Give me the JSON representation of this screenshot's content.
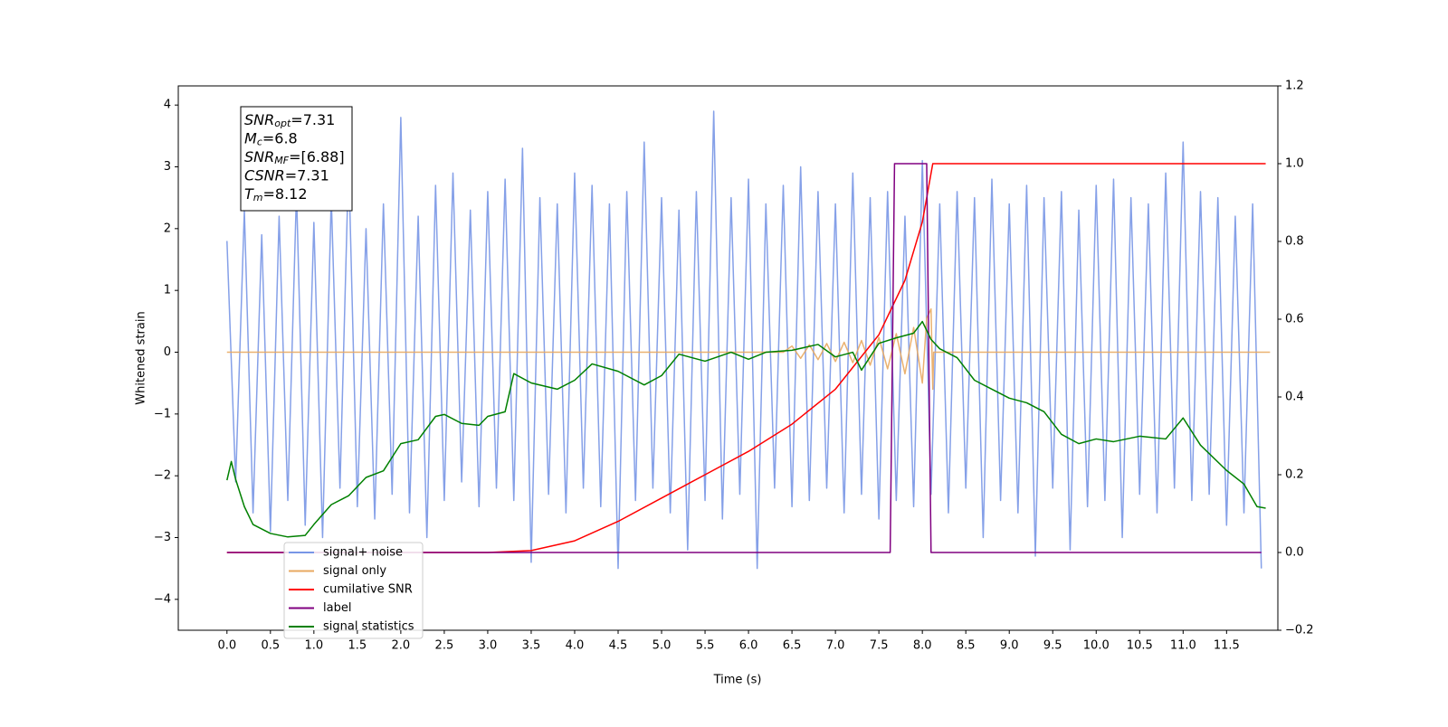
{
  "chart_data": {
    "type": "line",
    "xlabel": "Time (s)",
    "ylabel": "Whitened strain",
    "xlim": [
      -0.56,
      12.09
    ],
    "ylim": [
      -4.5,
      4.31
    ],
    "y2lim": [
      -0.2,
      1.2
    ],
    "xticks": [
      {
        "value": 0,
        "label": "0.0"
      },
      0.5,
      {
        "value": 1,
        "label": "1.0"
      },
      1.5,
      {
        "value": 2,
        "label": "2.0"
      },
      2.5,
      {
        "value": 3,
        "label": "3.0"
      },
      3.5,
      {
        "value": 4,
        "label": "4.0"
      },
      4.5,
      {
        "value": 5,
        "label": "5.0"
      },
      5.5,
      {
        "value": 6,
        "label": "6.0"
      },
      6.5,
      {
        "value": 7,
        "label": "7.0"
      },
      7.5,
      {
        "value": 8,
        "label": "8.0"
      },
      8.5,
      {
        "value": 9,
        "label": "9.0"
      },
      9.5,
      {
        "value": 10,
        "label": "10.0"
      },
      10.5,
      {
        "value": 11,
        "label": "11.0"
      },
      11.5
    ],
    "yticks": [
      {
        "value": -4,
        "label": "−4"
      },
      {
        "value": -3,
        "label": "−3"
      },
      {
        "value": -2,
        "label": "−2"
      },
      {
        "value": -1,
        "label": "−1"
      },
      0,
      1,
      2,
      3,
      4
    ],
    "y2ticks": [
      {
        "value": -0.2,
        "label": "−0.2"
      },
      {
        "value": 0,
        "label": "0.0"
      },
      0.2,
      0.4,
      0.6,
      0.8,
      {
        "value": 1,
        "label": "1.0"
      },
      1.2
    ],
    "annotation": [
      {
        "symbol": "SNR",
        "sub": "opt",
        "text": "=7.31"
      },
      {
        "symbol": "M",
        "sub": "c",
        "text": "=6.8"
      },
      {
        "symbol": "SNR",
        "sub": "MF",
        "text": "=[6.88]"
      },
      {
        "symbol": "CSNR",
        "text": "=7.31"
      },
      {
        "symbol": "T",
        "sub": "m",
        "text": "=8.12"
      }
    ],
    "series": [
      {
        "name": "signal+ noise",
        "color": "#7896e6",
        "axis": "y",
        "x": [
          0.0,
          0.1,
          0.2,
          0.3,
          0.4,
          0.5,
          0.6,
          0.7,
          0.8,
          0.9,
          1.0,
          1.1,
          1.2,
          1.3,
          1.4,
          1.5,
          1.6,
          1.7,
          1.8,
          1.9,
          2.0,
          2.1,
          2.2,
          2.3,
          2.4,
          2.5,
          2.6,
          2.7,
          2.8,
          2.9,
          3.0,
          3.1,
          3.2,
          3.3,
          3.4,
          3.5,
          3.6,
          3.7,
          3.8,
          3.9,
          4.0,
          4.1,
          4.2,
          4.3,
          4.4,
          4.5,
          4.6,
          4.7,
          4.8,
          4.9,
          5.0,
          5.1,
          5.2,
          5.3,
          5.4,
          5.5,
          5.6,
          5.7,
          5.8,
          5.9,
          6.0,
          6.1,
          6.2,
          6.3,
          6.4,
          6.5,
          6.6,
          6.7,
          6.8,
          6.9,
          7.0,
          7.1,
          7.2,
          7.3,
          7.4,
          7.5,
          7.6,
          7.7,
          7.8,
          7.9,
          8.0,
          8.1,
          8.2,
          8.3,
          8.4,
          8.5,
          8.6,
          8.7,
          8.8,
          8.9,
          9.0,
          9.1,
          9.2,
          9.3,
          9.4,
          9.5,
          9.6,
          9.7,
          9.8,
          9.9,
          10.0,
          10.1,
          10.2,
          10.3,
          10.4,
          10.5,
          10.6,
          10.7,
          10.8,
          10.9,
          11.0,
          11.1,
          11.2,
          11.3,
          11.4,
          11.5,
          11.6,
          11.7,
          11.8,
          11.9
        ],
        "values": [
          1.8,
          -2.1,
          2.3,
          -2.6,
          1.9,
          -2.9,
          2.2,
          -2.4,
          2.6,
          -2.8,
          2.1,
          -3.0,
          2.5,
          -2.2,
          3.1,
          -2.5,
          2.0,
          -2.7,
          2.4,
          -2.3,
          3.8,
          -2.6,
          2.2,
          -3.0,
          2.7,
          -2.4,
          2.9,
          -2.1,
          2.3,
          -2.5,
          2.6,
          -2.2,
          2.8,
          -2.4,
          3.3,
          -3.4,
          2.5,
          -2.3,
          2.4,
          -2.6,
          2.9,
          -2.2,
          2.7,
          -2.5,
          2.4,
          -3.5,
          2.6,
          -2.4,
          3.4,
          -2.2,
          2.5,
          -2.6,
          2.3,
          -3.2,
          2.6,
          -2.4,
          3.9,
          -2.7,
          2.5,
          -2.3,
          2.8,
          -3.5,
          2.4,
          -2.2,
          2.7,
          -2.5,
          3.0,
          -2.4,
          2.6,
          -2.2,
          2.4,
          -2.6,
          2.9,
          -2.3,
          2.5,
          -2.7,
          2.6,
          -2.4,
          2.2,
          -2.5,
          3.1,
          -2.3,
          2.4,
          -2.6,
          2.6,
          -2.2,
          2.5,
          -3.0,
          2.8,
          -2.4,
          2.4,
          -2.6,
          2.7,
          -3.3,
          2.5,
          -2.2,
          2.6,
          -3.2,
          2.3,
          -2.5,
          2.7,
          -2.4,
          2.8,
          -3.0,
          2.5,
          -2.3,
          2.4,
          -2.6,
          2.9,
          -2.2,
          3.4,
          -2.4,
          2.6,
          -2.3,
          2.5,
          -2.8,
          2.2,
          -2.6,
          2.4,
          -3.5
        ]
      },
      {
        "name": "signal only",
        "color": "#e8a860",
        "axis": "y",
        "x": [
          0.0,
          6.4,
          6.5,
          6.6,
          6.7,
          6.8,
          6.9,
          7.0,
          7.1,
          7.2,
          7.3,
          7.4,
          7.5,
          7.6,
          7.7,
          7.8,
          7.9,
          8.0,
          8.05,
          8.1,
          8.12,
          8.13,
          12.0
        ],
        "values": [
          0,
          0,
          0.1,
          -0.1,
          0.12,
          -0.12,
          0.14,
          -0.15,
          0.16,
          -0.17,
          0.19,
          -0.21,
          0.24,
          -0.27,
          0.3,
          -0.35,
          0.4,
          -0.5,
          0.55,
          0.7,
          -0.6,
          0,
          0
        ]
      },
      {
        "name": "cumilative SNR",
        "color": "#ff0000",
        "axis": "y2",
        "x": [
          0.0,
          3.0,
          3.5,
          4.0,
          4.5,
          5.0,
          5.5,
          6.0,
          6.5,
          7.0,
          7.5,
          7.8,
          8.0,
          8.12,
          11.95
        ],
        "values": [
          0,
          0,
          0.005,
          0.03,
          0.08,
          0.14,
          0.2,
          0.26,
          0.33,
          0.42,
          0.56,
          0.7,
          0.85,
          1.0,
          1.0
        ]
      },
      {
        "name": "label",
        "color": "#800080",
        "axis": "y2",
        "x": [
          0.0,
          7.63,
          7.68,
          8.05,
          8.1,
          11.9
        ],
        "values": [
          0,
          0,
          1,
          1,
          0,
          0
        ]
      },
      {
        "name": "signal statistics",
        "color": "#008000",
        "axis": "y2",
        "x": [
          0.0,
          0.05,
          0.1,
          0.2,
          0.3,
          0.5,
          0.7,
          0.9,
          1.0,
          1.2,
          1.4,
          1.6,
          1.8,
          2.0,
          2.2,
          2.4,
          2.5,
          2.7,
          2.9,
          3.0,
          3.2,
          3.3,
          3.5,
          3.8,
          4.0,
          4.2,
          4.5,
          4.8,
          5.0,
          5.2,
          5.5,
          5.8,
          6.0,
          6.2,
          6.5,
          6.8,
          7.0,
          7.2,
          7.3,
          7.5,
          7.7,
          7.9,
          8.0,
          8.1,
          8.2,
          8.4,
          8.6,
          8.8,
          9.0,
          9.2,
          9.4,
          9.6,
          9.8,
          10.0,
          10.2,
          10.5,
          10.8,
          11.0,
          11.2,
          11.5,
          11.7,
          11.85,
          11.95
        ],
        "values": [
          0.186,
          0.234,
          0.188,
          0.118,
          0.072,
          0.049,
          0.04,
          0.044,
          0.072,
          0.123,
          0.146,
          0.193,
          0.21,
          0.28,
          0.29,
          0.35,
          0.355,
          0.332,
          0.327,
          0.35,
          0.362,
          0.46,
          0.436,
          0.42,
          0.443,
          0.485,
          0.466,
          0.431,
          0.455,
          0.51,
          0.492,
          0.515,
          0.497,
          0.515,
          0.52,
          0.535,
          0.503,
          0.515,
          0.469,
          0.538,
          0.552,
          0.564,
          0.594,
          0.548,
          0.524,
          0.501,
          0.443,
          0.42,
          0.397,
          0.385,
          0.362,
          0.304,
          0.28,
          0.292,
          0.285,
          0.299,
          0.292,
          0.346,
          0.276,
          0.211,
          0.176,
          0.118,
          0.114
        ]
      }
    ]
  }
}
